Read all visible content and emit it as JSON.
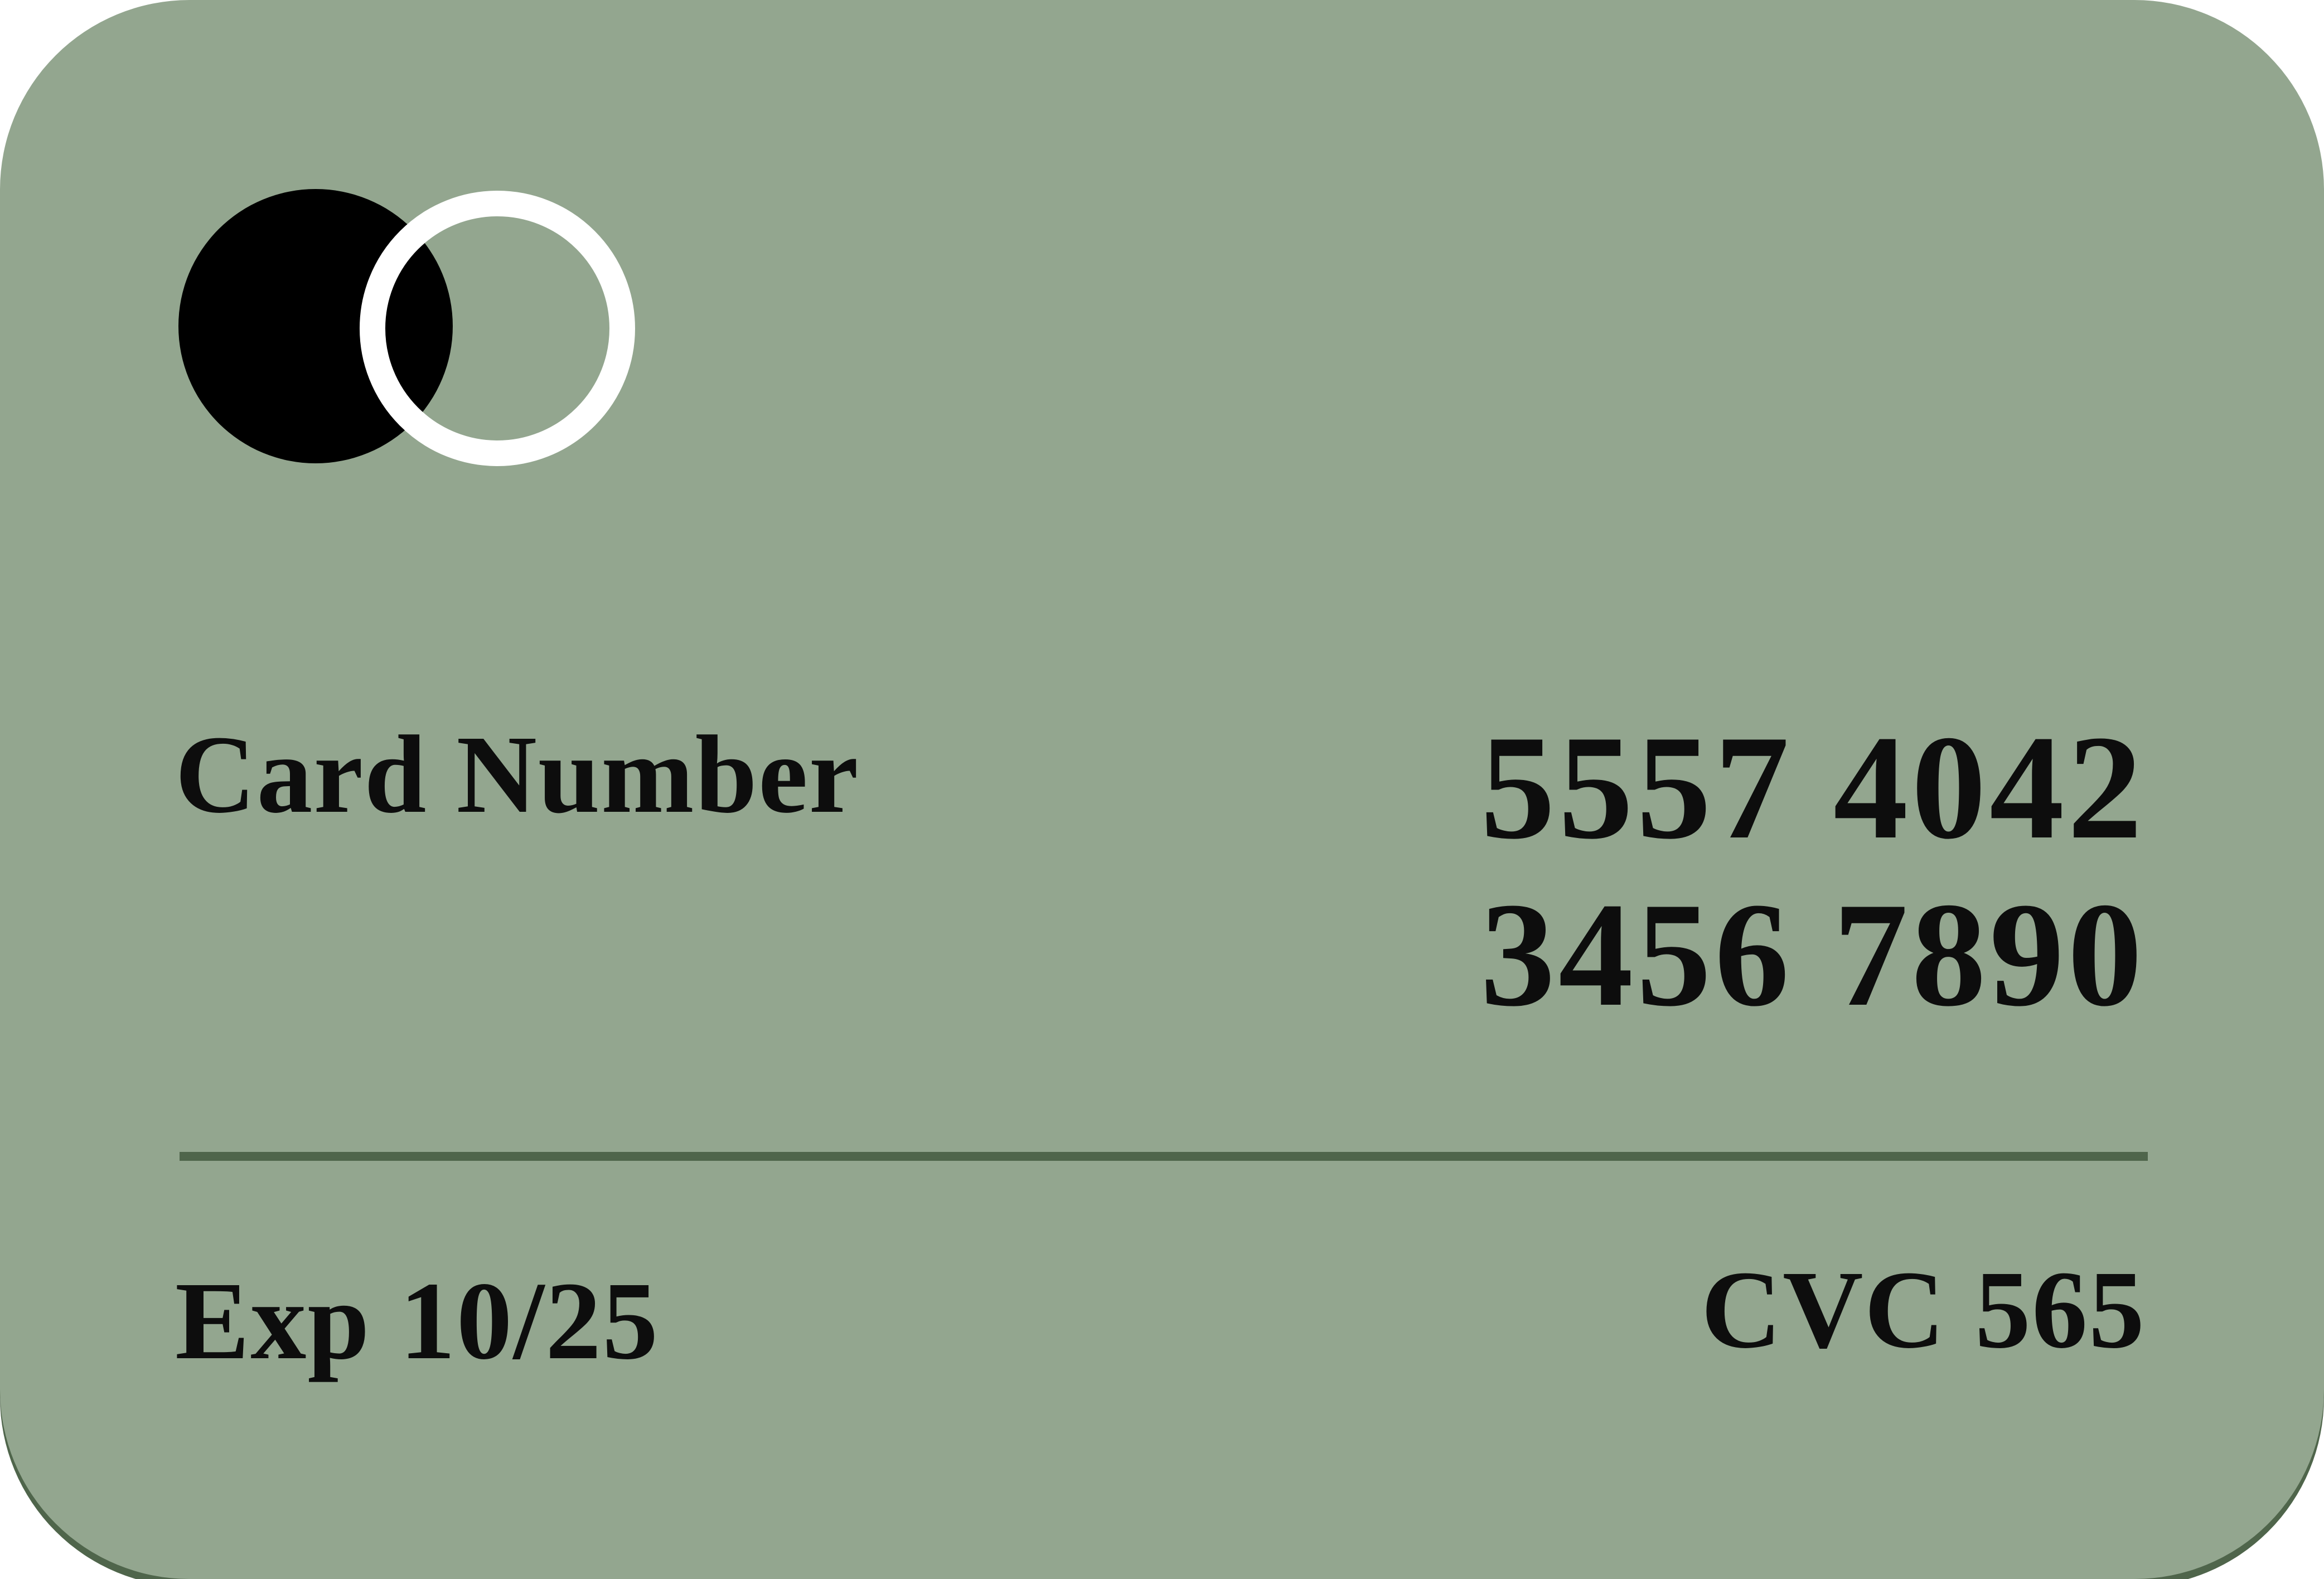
{
  "card": {
    "background_color": "#93a68f",
    "accent_color": "#4f654b",
    "number_label": "Card Number",
    "number_line_1": "5557 4042",
    "number_line_2": "3456 7890",
    "expiry": "Exp 10/25",
    "cvc": "CVC 565",
    "logo_icon": "overlapping-circles-icon"
  }
}
